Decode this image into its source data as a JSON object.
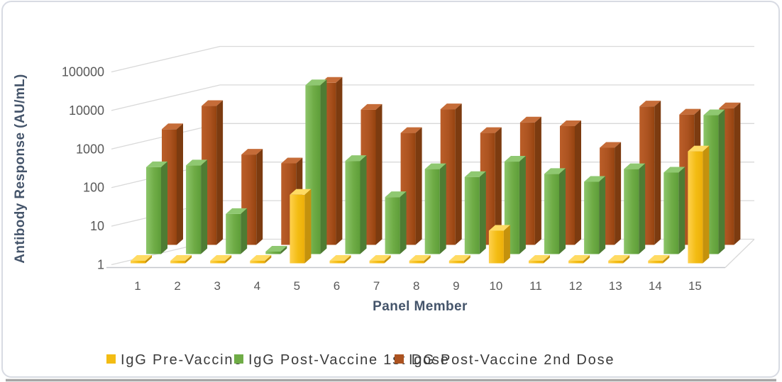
{
  "window": {
    "card_background": "#FFFFFF",
    "card_border": "#D8DBE3",
    "bottom_edge_color": "#A6A6A6"
  },
  "chart_data": {
    "type": "bar",
    "variant": "3d-clustered-column",
    "title": "",
    "xlabel": "Panel Member",
    "ylabel": "Antibody Response (AU/mL)",
    "y_scale": "log10",
    "ylim": [
      1,
      100000
    ],
    "y_ticks": [
      "1",
      "10",
      "100",
      "1000",
      "10000",
      "100000"
    ],
    "grid": true,
    "legend_position": "bottom",
    "categories": [
      "1",
      "2",
      "3",
      "4",
      "5",
      "6",
      "7",
      "8",
      "9",
      "10",
      "11",
      "12",
      "13",
      "14",
      "15"
    ],
    "series": [
      {
        "name": "IgG Pre-Vaccine",
        "color": "#F3BC13",
        "color_light": "#FFD14E",
        "color_dark": "#EDAE09",
        "color_top": "#FFDB63",
        "color_side": "#C4920D",
        "values": [
          1,
          1,
          1,
          1,
          60,
          1,
          1,
          1,
          1,
          7,
          1,
          1,
          1,
          1,
          800
        ]
      },
      {
        "name": "IgG Post-Vaccine 1st Dose",
        "color": "#6FAC46",
        "color_light": "#8CC56A",
        "color_dark": "#5E9E39",
        "color_top": "#8FC871",
        "color_side": "#4E7C33",
        "values": [
          180,
          200,
          11,
          1.2,
          24000,
          260,
          30,
          160,
          100,
          250,
          120,
          75,
          160,
          130,
          4000
        ]
      },
      {
        "name": "IgG Post-Vaccine 2nd Dose",
        "color": "#AC5320",
        "color_light": "#BB5E29",
        "color_dark": "#95430F",
        "color_top": "#C56C38",
        "color_side": "#7C3B10",
        "values": [
          1000,
          4000,
          220,
          130,
          16000,
          3200,
          800,
          3300,
          800,
          1500,
          1200,
          330,
          3900,
          2400,
          3500
        ]
      }
    ],
    "axis_tick_color": "#595959",
    "axis_title_color": "#44546A",
    "legend_text_color": "#3B3B3B",
    "gridline_color": "#D9D9D9",
    "axis_line_color": "#C3C6CA"
  }
}
